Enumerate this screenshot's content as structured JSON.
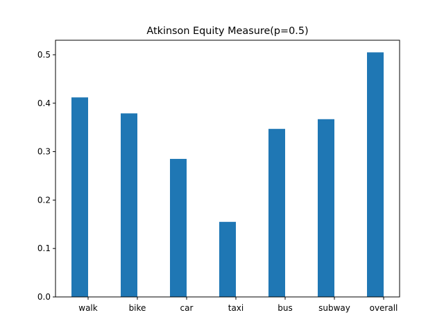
{
  "chart_data": {
    "type": "bar",
    "title": "Atkinson Equity Measure(p=0.5)",
    "xlabel": "",
    "ylabel": "",
    "categories": [
      "walk",
      "bike",
      "car",
      "taxi",
      "bus",
      "subway",
      "overall"
    ],
    "values": [
      0.412,
      0.379,
      0.285,
      0.155,
      0.347,
      0.367,
      0.505
    ],
    "ylim": [
      0,
      0.53
    ],
    "yticks": [
      0.0,
      0.1,
      0.2,
      0.3,
      0.4,
      0.5
    ],
    "ytick_labels": [
      "0.0",
      "0.1",
      "0.2",
      "0.3",
      "0.4",
      "0.5"
    ],
    "bar_color": "#1f77b4",
    "grid": false,
    "legend": "none"
  }
}
